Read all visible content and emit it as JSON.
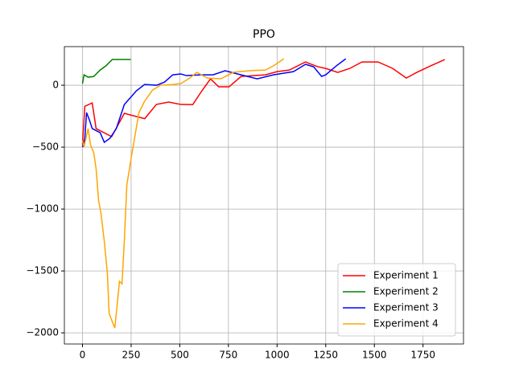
{
  "chart_data": {
    "type": "line",
    "title": "PPO",
    "xlim": [
      -93,
      1958
    ],
    "ylim": [
      -2090,
      312
    ],
    "xticks": [
      0,
      250,
      500,
      750,
      1000,
      1250,
      1500,
      1750
    ],
    "yticks": [
      {
        "value": -2000,
        "label": "−2000"
      },
      {
        "value": -1500,
        "label": "−1500"
      },
      {
        "value": -1000,
        "label": "−1000"
      },
      {
        "value": -500,
        "label": "−500"
      },
      0
    ],
    "grid": true,
    "legend": "lower right",
    "series": [
      {
        "name": "Experiment 1",
        "color": "#ff0000",
        "x": [
          0,
          12,
          50,
          70,
          150,
          195,
          215,
          277,
          320,
          380,
          443,
          505,
          567,
          608,
          658,
          700,
          753,
          815,
          940,
          1000,
          1063,
          1146,
          1208,
          1250,
          1312,
          1374,
          1436,
          1519,
          1594,
          1664,
          1718,
          1788,
          1862
        ],
        "values": [
          -480,
          -170,
          -143,
          -350,
          -415,
          -285,
          -227,
          -253,
          -270,
          -155,
          -136,
          -155,
          -156,
          -58,
          52,
          -13,
          -13,
          71,
          84,
          110,
          123,
          188,
          150,
          136,
          104,
          136,
          188,
          188,
          136,
          58,
          104,
          156,
          208
        ]
      },
      {
        "name": "Experiment 2",
        "color": "#008000",
        "x": [
          0,
          8,
          29,
          58,
          91,
          120,
          153,
          248
        ],
        "values": [
          13,
          84,
          65,
          71,
          123,
          156,
          208,
          208
        ]
      },
      {
        "name": "Experiment 3",
        "color": "#0000ff",
        "x": [
          0,
          12,
          21,
          37,
          50,
          91,
          112,
          141,
          174,
          215,
          277,
          319,
          381,
          422,
          464,
          505,
          534,
          608,
          671,
          733,
          815,
          898,
          981,
          1084,
          1146,
          1188,
          1229,
          1250,
          1304,
          1353
        ],
        "values": [
          -500,
          -429,
          -221,
          -286,
          -350,
          -383,
          -461,
          -429,
          -350,
          -156,
          -45,
          6,
          0,
          26,
          84,
          91,
          78,
          84,
          84,
          117,
          84,
          52,
          84,
          110,
          169,
          149,
          71,
          84,
          156,
          214
        ]
      },
      {
        "name": "Experiment 4",
        "color": "#ffa500",
        "x": [
          0,
          8,
          29,
          41,
          58,
          70,
          83,
          95,
          112,
          128,
          137,
          153,
          166,
          178,
          190,
          203,
          215,
          228,
          248,
          269,
          290,
          319,
          360,
          401,
          464,
          505,
          546,
          588,
          642,
          712,
          774,
          857,
          940,
          981,
          1035
        ],
        "values": [
          -448,
          -500,
          -350,
          -480,
          -545,
          -675,
          -935,
          -1032,
          -1260,
          -1519,
          -1844,
          -1909,
          -1961,
          -1779,
          -1584,
          -1604,
          -1260,
          -805,
          -610,
          -416,
          -221,
          -130,
          -39,
          0,
          6,
          13,
          52,
          104,
          58,
          52,
          104,
          117,
          123,
          156,
          214
        ]
      }
    ]
  }
}
